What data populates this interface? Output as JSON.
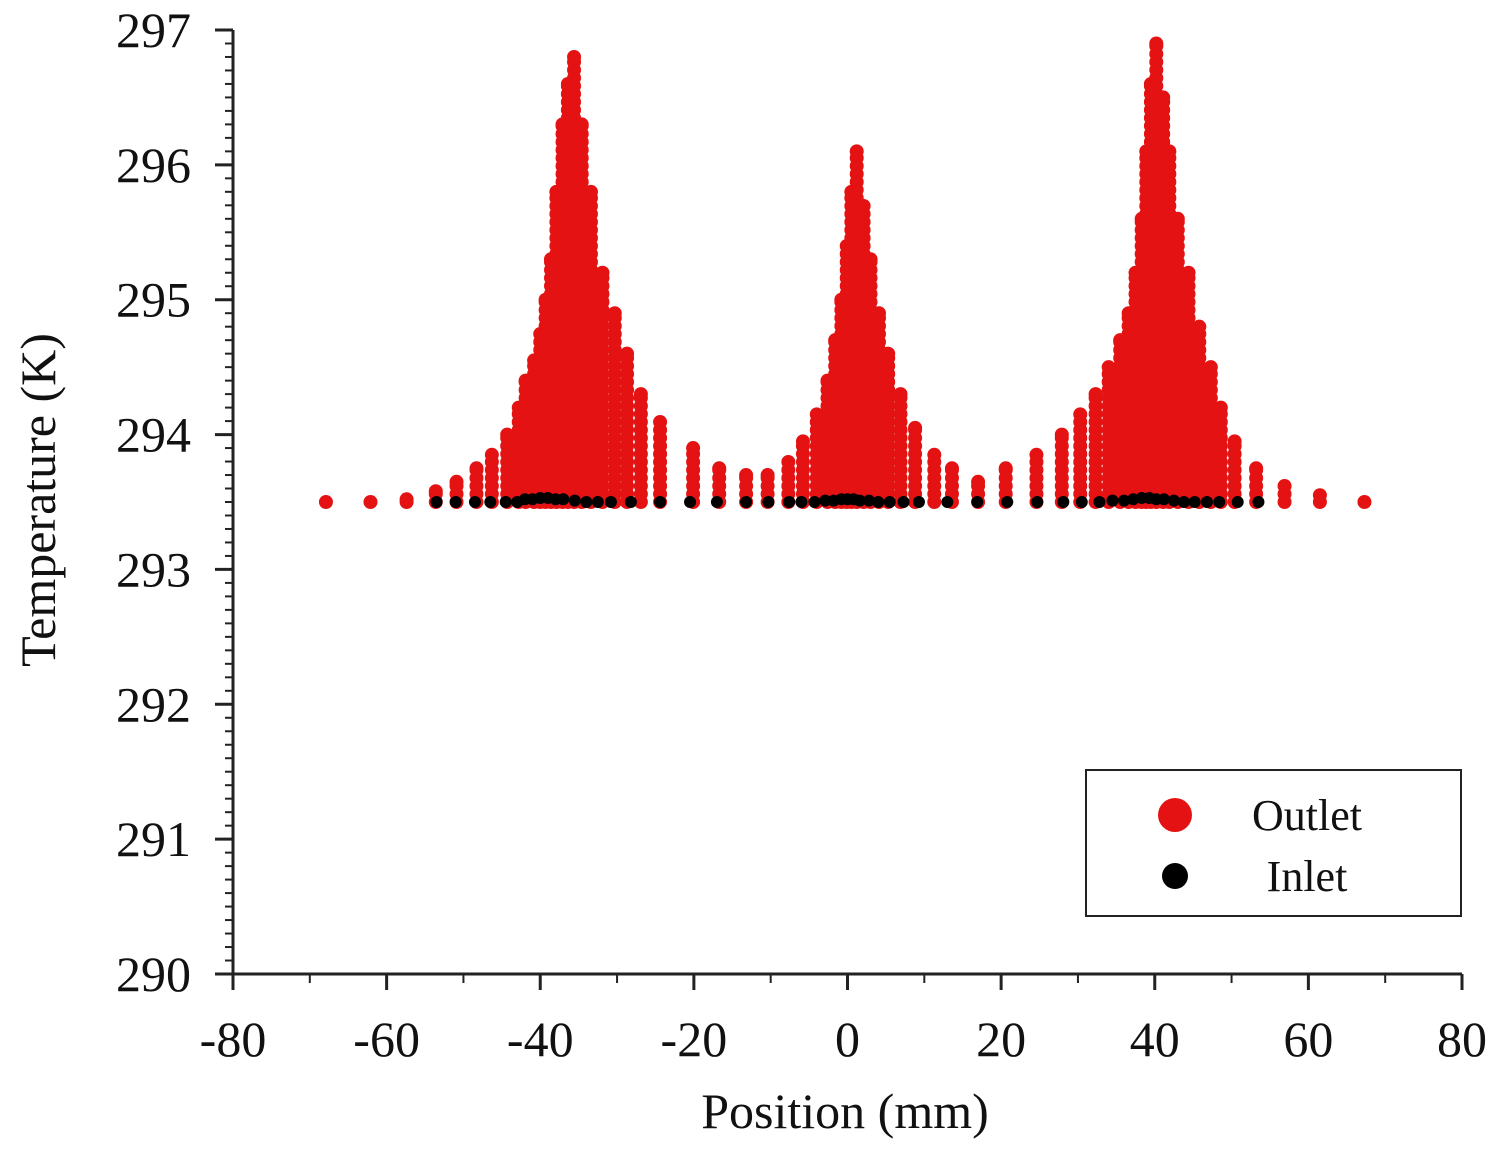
{
  "chart_data": {
    "type": "scatter",
    "title": "",
    "xlabel": "Position (mm)",
    "ylabel": "Temperature (K)",
    "xlim": [
      -80,
      80
    ],
    "ylim": [
      290,
      297
    ],
    "xticks": [
      "-80",
      "-60",
      "-40",
      "-20",
      "0",
      "20",
      "40",
      "60",
      "80"
    ],
    "yticks": [
      "290",
      "291",
      "292",
      "293",
      "294",
      "295",
      "296",
      "297"
    ],
    "legend_position": "bottom-right",
    "series": [
      {
        "name": "Outlet",
        "color": "#e41212",
        "marker": "large-circle",
        "points": [
          [
            -67.9,
            293.5
          ],
          [
            -62.1,
            293.5
          ],
          [
            -57.4,
            293.52
          ],
          [
            -53.6,
            293.58
          ],
          [
            -50.9,
            293.65
          ],
          [
            -48.3,
            293.75
          ],
          [
            -46.3,
            293.85
          ],
          [
            -44.3,
            294.0
          ],
          [
            -42.8,
            294.2
          ],
          [
            -41.9,
            294.4
          ],
          [
            -40.8,
            294.55
          ],
          [
            -40.0,
            294.75
          ],
          [
            -39.3,
            295.0
          ],
          [
            -38.6,
            295.3
          ],
          [
            -37.9,
            295.8
          ],
          [
            -37.1,
            296.3
          ],
          [
            -36.4,
            296.6
          ],
          [
            -35.6,
            296.8
          ],
          [
            -34.6,
            296.3
          ],
          [
            -33.4,
            295.8
          ],
          [
            -31.9,
            295.2
          ],
          [
            -30.3,
            294.9
          ],
          [
            -28.7,
            294.6
          ],
          [
            -26.9,
            294.3
          ],
          [
            -24.4,
            294.1
          ],
          [
            -20.1,
            293.9
          ],
          [
            -16.7,
            293.75
          ],
          [
            -13.2,
            293.7
          ],
          [
            -10.4,
            293.7
          ],
          [
            -7.7,
            293.8
          ],
          [
            -5.8,
            293.95
          ],
          [
            -4.0,
            294.15
          ],
          [
            -2.6,
            294.4
          ],
          [
            -1.6,
            294.7
          ],
          [
            -0.8,
            295.0
          ],
          [
            -0.1,
            295.4
          ],
          [
            0.5,
            295.8
          ],
          [
            1.2,
            296.1
          ],
          [
            2.1,
            295.7
          ],
          [
            3.0,
            295.3
          ],
          [
            4.1,
            294.9
          ],
          [
            5.3,
            294.6
          ],
          [
            6.9,
            294.3
          ],
          [
            8.8,
            294.05
          ],
          [
            11.3,
            293.85
          ],
          [
            13.6,
            293.75
          ],
          [
            17.0,
            293.65
          ],
          [
            20.6,
            293.75
          ],
          [
            24.6,
            293.85
          ],
          [
            27.9,
            294.0
          ],
          [
            30.3,
            294.15
          ],
          [
            32.3,
            294.3
          ],
          [
            34.0,
            294.5
          ],
          [
            35.5,
            294.7
          ],
          [
            36.6,
            294.9
          ],
          [
            37.5,
            295.2
          ],
          [
            38.3,
            295.6
          ],
          [
            38.9,
            296.1
          ],
          [
            39.5,
            296.6
          ],
          [
            40.2,
            296.9
          ],
          [
            41.1,
            296.5
          ],
          [
            41.9,
            296.1
          ],
          [
            43.0,
            295.6
          ],
          [
            44.4,
            295.2
          ],
          [
            45.8,
            294.8
          ],
          [
            47.3,
            294.5
          ],
          [
            48.6,
            294.2
          ],
          [
            50.4,
            293.95
          ],
          [
            53.2,
            293.75
          ],
          [
            56.9,
            293.62
          ],
          [
            61.5,
            293.55
          ],
          [
            67.3,
            293.5
          ]
        ]
      },
      {
        "name": "Inlet",
        "color": "#000000",
        "marker": "small-circle",
        "points": [
          [
            -53.5,
            293.5
          ],
          [
            -51.0,
            293.5
          ],
          [
            -48.5,
            293.5
          ],
          [
            -46.5,
            293.5
          ],
          [
            -44.5,
            293.5
          ],
          [
            -43.0,
            293.5
          ],
          [
            -42.0,
            293.52
          ],
          [
            -41.0,
            293.52
          ],
          [
            -40.0,
            293.53
          ],
          [
            -39.0,
            293.53
          ],
          [
            -38.0,
            293.52
          ],
          [
            -37.0,
            293.52
          ],
          [
            -35.5,
            293.51
          ],
          [
            -34.0,
            293.5
          ],
          [
            -32.5,
            293.5
          ],
          [
            -30.8,
            293.5
          ],
          [
            -28.2,
            293.5
          ],
          [
            -24.4,
            293.5
          ],
          [
            -20.5,
            293.5
          ],
          [
            -17.0,
            293.5
          ],
          [
            -13.2,
            293.5
          ],
          [
            -10.3,
            293.5
          ],
          [
            -7.6,
            293.5
          ],
          [
            -6.0,
            293.5
          ],
          [
            -4.3,
            293.5
          ],
          [
            -2.9,
            293.51
          ],
          [
            -1.8,
            293.51
          ],
          [
            -0.8,
            293.52
          ],
          [
            0.0,
            293.52
          ],
          [
            0.8,
            293.52
          ],
          [
            1.6,
            293.51
          ],
          [
            2.8,
            293.51
          ],
          [
            4.0,
            293.5
          ],
          [
            5.5,
            293.5
          ],
          [
            7.3,
            293.5
          ],
          [
            9.3,
            293.5
          ],
          [
            13.0,
            293.5
          ],
          [
            16.9,
            293.5
          ],
          [
            20.8,
            293.5
          ],
          [
            24.7,
            293.5
          ],
          [
            28.1,
            293.5
          ],
          [
            30.5,
            293.5
          ],
          [
            32.8,
            293.5
          ],
          [
            34.5,
            293.51
          ],
          [
            36.0,
            293.51
          ],
          [
            37.2,
            293.52
          ],
          [
            38.3,
            293.53
          ],
          [
            39.3,
            293.53
          ],
          [
            40.2,
            293.52
          ],
          [
            41.2,
            293.52
          ],
          [
            42.5,
            293.51
          ],
          [
            43.8,
            293.5
          ],
          [
            45.2,
            293.5
          ],
          [
            46.8,
            293.5
          ],
          [
            48.4,
            293.5
          ],
          [
            50.8,
            293.5
          ],
          [
            53.5,
            293.5
          ]
        ]
      }
    ]
  }
}
